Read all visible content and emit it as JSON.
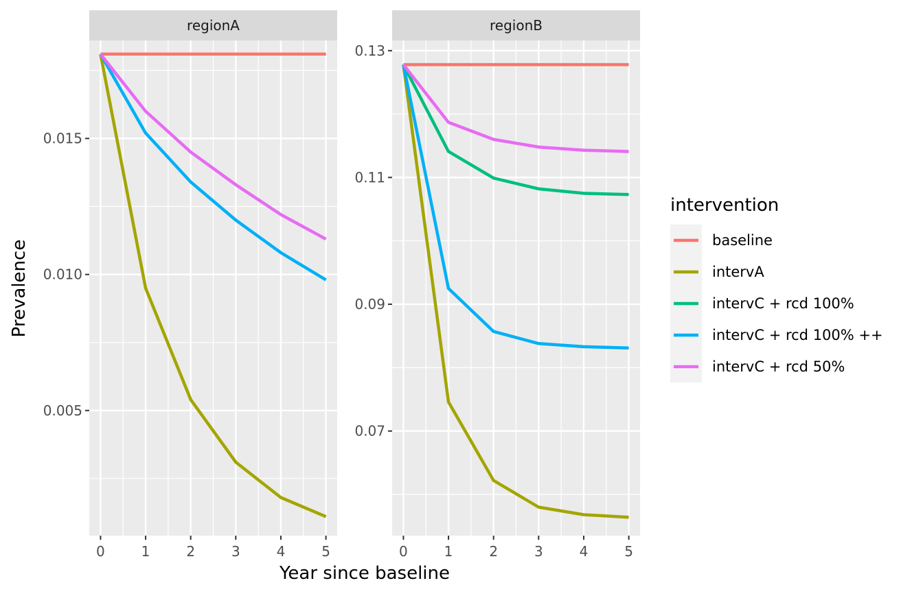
{
  "chart_data": {
    "type": "line",
    "xlabel": "Year since baseline",
    "ylabel": "Prevalence",
    "x": [
      0,
      1,
      2,
      3,
      4,
      5
    ],
    "xticks": [
      "0",
      "1",
      "2",
      "3",
      "4",
      "5"
    ],
    "legend": {
      "title": "intervention",
      "position": "right",
      "entries": [
        "baseline",
        "intervA",
        "intervC + rcd 100%",
        "intervC + rcd 100% ++",
        "intervC + rcd 50%"
      ]
    },
    "colors": {
      "baseline": "#F8766D",
      "intervA": "#A3A500",
      "intervC + rcd 100%": "#00BF7D",
      "intervC + rcd 100% ++": "#00B0F6",
      "intervC + rcd 50%": "#E76BF3",
      "panel_bg": "#EBEBEB",
      "strip_bg": "#D9D9D9"
    },
    "panels": [
      {
        "title": "regionA",
        "ylim": [
          0.0004,
          0.0186
        ],
        "yticks": [
          0.005,
          0.01,
          0.015
        ],
        "ytick_labels": [
          "0.005",
          "0.010",
          "0.015"
        ],
        "series": [
          {
            "name": "baseline",
            "values": [
              0.0181,
              0.0181,
              0.0181,
              0.0181,
              0.0181,
              0.0181
            ]
          },
          {
            "name": "intervA",
            "values": [
              0.0181,
              0.0095,
              0.0054,
              0.0031,
              0.0018,
              0.0011
            ]
          },
          {
            "name": "intervC + rcd 100% ++",
            "values": [
              0.0181,
              0.0152,
              0.0134,
              0.012,
              0.0108,
              0.0098
            ]
          },
          {
            "name": "intervC + rcd 50%",
            "values": [
              0.0181,
              0.016,
              0.0145,
              0.0133,
              0.0122,
              0.0113
            ]
          }
        ]
      },
      {
        "title": "regionB",
        "ylim": [
          0.0535,
          0.1316
        ],
        "yticks": [
          0.07,
          0.09,
          0.11,
          0.13
        ],
        "ytick_labels": [
          "0.07",
          "0.09",
          "0.11",
          "0.13"
        ],
        "series": [
          {
            "name": "baseline",
            "values": [
              0.1278,
              0.1278,
              0.1278,
              0.1278,
              0.1278,
              0.1278
            ]
          },
          {
            "name": "intervA",
            "values": [
              0.1278,
              0.0746,
              0.0622,
              0.058,
              0.0568,
              0.0564
            ]
          },
          {
            "name": "intervC + rcd 100%",
            "values": [
              0.1278,
              0.1141,
              0.1099,
              0.1082,
              0.1075,
              0.1073
            ]
          },
          {
            "name": "intervC + rcd 100% ++",
            "values": [
              0.1278,
              0.0925,
              0.0857,
              0.0838,
              0.0833,
              0.0831
            ]
          },
          {
            "name": "intervC + rcd 50%",
            "values": [
              0.1278,
              0.1187,
              0.116,
              0.1148,
              0.1143,
              0.1141
            ]
          }
        ]
      }
    ]
  }
}
